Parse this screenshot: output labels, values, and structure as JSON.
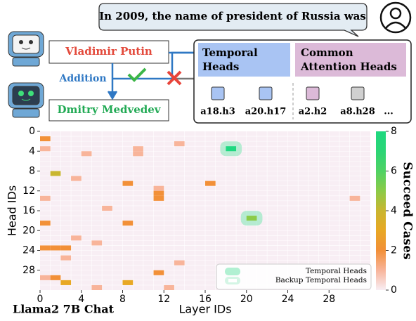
{
  "diagram": {
    "prompt": "In 2009, the name of president of Russia was",
    "old_answer": "Vladimir Putin",
    "edit_label": "Addition",
    "new_answer": "Dmitry Medvedev",
    "temporal_title": "Temporal Heads",
    "common_title": "Common Attention Heads",
    "heads": [
      "a18.h3",
      "a20.h17",
      "a2.h2",
      "a8.h28",
      "..."
    ]
  },
  "chart_data": {
    "type": "heatmap",
    "title": "Llama2 7B Chat",
    "xlabel": "Layer IDs",
    "ylabel": "Head IDs",
    "colorbar_label": "Succeed Cases",
    "x": [
      0,
      0,
      18,
      13,
      9,
      9,
      4,
      1,
      3,
      8,
      16,
      11,
      11,
      11,
      0,
      30,
      6,
      20,
      0,
      8,
      3,
      5,
      0,
      1,
      2,
      2,
      13,
      11,
      0,
      1,
      2,
      8,
      5,
      12
    ],
    "y": [
      1,
      3,
      3,
      2,
      3,
      4,
      4,
      8,
      9,
      10,
      10,
      11,
      12,
      13,
      13,
      13,
      15,
      17,
      18,
      18,
      21,
      22,
      23,
      23,
      23,
      25,
      26,
      28,
      29,
      29,
      30,
      30,
      31,
      31
    ],
    "values": [
      2,
      1,
      8,
      1,
      1,
      1,
      1,
      4,
      1,
      2,
      2,
      1,
      2,
      2,
      1,
      1,
      1,
      5,
      2,
      2,
      1,
      1,
      2,
      2,
      2,
      1,
      1,
      2,
      1,
      2,
      3,
      3,
      1,
      1
    ],
    "xlim": [
      0,
      32
    ],
    "ylim": [
      0,
      32
    ],
    "xticks": [
      0,
      4,
      8,
      12,
      16,
      20,
      24,
      28
    ],
    "yticks": [
      0,
      4,
      8,
      12,
      16,
      20,
      24,
      28
    ],
    "vlim": [
      0,
      8
    ],
    "cticks": [
      0,
      2,
      4,
      6,
      8
    ],
    "colormap": [
      "#f8eef4",
      "#f8b49a",
      "#f29038",
      "#e8a824",
      "#c9b630",
      "#8bcb48",
      "#4fd264",
      "#2bd575",
      "#1ed880"
    ],
    "legend": [
      "Temporal Heads",
      "Backup Temporal Heads"
    ]
  }
}
